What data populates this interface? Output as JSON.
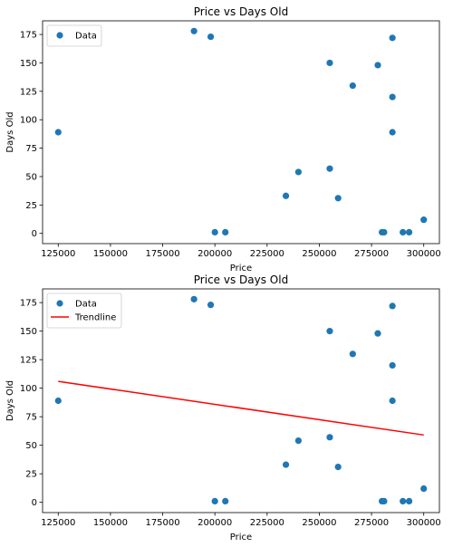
{
  "chart_data": [
    {
      "type": "scatter",
      "title": "Price vs Days Old",
      "xlabel": "Price",
      "ylabel": "Days Old",
      "xlim": [
        117500,
        307500
      ],
      "ylim": [
        -9,
        187
      ],
      "xticks": [
        125000,
        150000,
        175000,
        200000,
        225000,
        250000,
        275000,
        300000
      ],
      "yticks": [
        0,
        25,
        50,
        75,
        100,
        125,
        150,
        175
      ],
      "grid": false,
      "legend_position": "top-left",
      "series": [
        {
          "name": "Data",
          "color": "#1f77b4",
          "x": [
            125000,
            190000,
            198000,
            200000,
            205000,
            234000,
            240000,
            255000,
            255000,
            259000,
            266000,
            278000,
            280000,
            281000,
            285000,
            285000,
            285000,
            290000,
            293000,
            300000
          ],
          "y": [
            89,
            178,
            173,
            1,
            1,
            33,
            54,
            57,
            150,
            31,
            130,
            148,
            1,
            1,
            172,
            120,
            89,
            1,
            1,
            12
          ]
        }
      ]
    },
    {
      "type": "scatter",
      "title": "Price vs Days Old",
      "xlabel": "Price",
      "ylabel": "Days Old",
      "xlim": [
        117500,
        307500
      ],
      "ylim": [
        -9,
        187
      ],
      "xticks": [
        125000,
        150000,
        175000,
        200000,
        225000,
        250000,
        275000,
        300000
      ],
      "yticks": [
        0,
        25,
        50,
        75,
        100,
        125,
        150,
        175
      ],
      "grid": false,
      "legend_position": "top-left",
      "series": [
        {
          "name": "Data",
          "color": "#1f77b4",
          "x": [
            125000,
            190000,
            198000,
            200000,
            205000,
            234000,
            240000,
            255000,
            255000,
            259000,
            266000,
            278000,
            280000,
            281000,
            285000,
            285000,
            285000,
            290000,
            293000,
            300000
          ],
          "y": [
            89,
            178,
            173,
            1,
            1,
            33,
            54,
            57,
            150,
            31,
            130,
            148,
            1,
            1,
            172,
            120,
            89,
            1,
            1,
            12
          ]
        }
      ],
      "trendline": {
        "name": "Trendline",
        "color": "#ff0000",
        "x": [
          125000,
          300000
        ],
        "y": [
          106,
          59
        ]
      }
    }
  ]
}
